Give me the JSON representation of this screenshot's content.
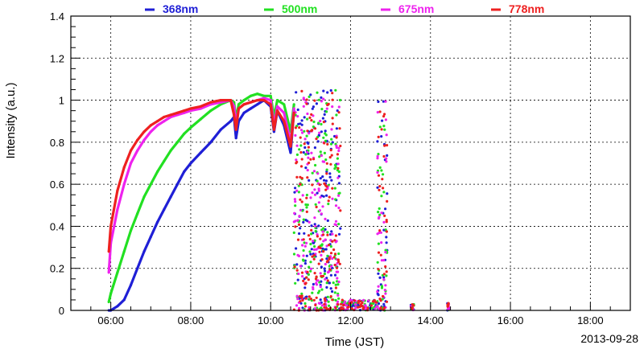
{
  "chart_data": {
    "type": "scatter",
    "title": "",
    "xlabel": "Time (JST)",
    "ylabel": "Intensity (a.u.)",
    "date_label": "2013-09-28",
    "xlim": [
      "05:00",
      "19:00"
    ],
    "ylim": [
      0,
      1.4
    ],
    "x_ticks": [
      "06:00",
      "08:00",
      "10:00",
      "12:00",
      "14:00",
      "16:00",
      "18:00"
    ],
    "y_ticks": [
      "0",
      "0.2",
      "0.4",
      "0.6",
      "0.8",
      "1",
      "1.2",
      "1.4"
    ],
    "grid": true,
    "legend_position": "top",
    "series": [
      {
        "name": "368nm",
        "color": "#1f1fd6",
        "points": [
          [
            "05:57",
            0.0
          ],
          [
            "06:00",
            0.0
          ],
          [
            "06:10",
            0.02
          ],
          [
            "06:20",
            0.05
          ],
          [
            "06:30",
            0.12
          ],
          [
            "06:40",
            0.2
          ],
          [
            "06:50",
            0.28
          ],
          [
            "07:00",
            0.35
          ],
          [
            "07:10",
            0.42
          ],
          [
            "07:20",
            0.48
          ],
          [
            "07:30",
            0.54
          ],
          [
            "07:40",
            0.6
          ],
          [
            "07:50",
            0.66
          ],
          [
            "08:00",
            0.7
          ],
          [
            "08:15",
            0.75
          ],
          [
            "08:30",
            0.8
          ],
          [
            "08:45",
            0.86
          ],
          [
            "09:00",
            0.9
          ],
          [
            "09:05",
            0.92
          ],
          [
            "09:08",
            0.82
          ],
          [
            "09:12",
            0.9
          ],
          [
            "09:20",
            0.94
          ],
          [
            "09:30",
            0.96
          ],
          [
            "09:40",
            0.98
          ],
          [
            "09:50",
            1.0
          ],
          [
            "10:00",
            0.97
          ],
          [
            "10:05",
            0.85
          ],
          [
            "10:10",
            0.95
          ],
          [
            "10:20",
            0.88
          ],
          [
            "10:30",
            0.75
          ],
          [
            "10:35",
            0.95
          ]
        ]
      },
      {
        "name": "500nm",
        "color": "#22e022",
        "points": [
          [
            "05:57",
            0.04
          ],
          [
            "06:00",
            0.08
          ],
          [
            "06:10",
            0.18
          ],
          [
            "06:20",
            0.28
          ],
          [
            "06:30",
            0.38
          ],
          [
            "06:40",
            0.46
          ],
          [
            "06:50",
            0.54
          ],
          [
            "07:00",
            0.6
          ],
          [
            "07:10",
            0.66
          ],
          [
            "07:20",
            0.71
          ],
          [
            "07:30",
            0.76
          ],
          [
            "07:40",
            0.8
          ],
          [
            "07:50",
            0.84
          ],
          [
            "08:00",
            0.87
          ],
          [
            "08:15",
            0.91
          ],
          [
            "08:30",
            0.95
          ],
          [
            "08:45",
            0.98
          ],
          [
            "09:00",
            1.0
          ],
          [
            "09:05",
            0.99
          ],
          [
            "09:08",
            0.91
          ],
          [
            "09:12",
            0.98
          ],
          [
            "09:20",
            1.0
          ],
          [
            "09:30",
            1.02
          ],
          [
            "09:40",
            1.03
          ],
          [
            "09:50",
            1.02
          ],
          [
            "10:00",
            1.02
          ],
          [
            "10:05",
            0.92
          ],
          [
            "10:10",
            1.0
          ],
          [
            "10:20",
            0.98
          ],
          [
            "10:30",
            0.85
          ],
          [
            "10:35",
            0.98
          ]
        ]
      },
      {
        "name": "675nm",
        "color": "#ee22ee",
        "points": [
          [
            "05:57",
            0.18
          ],
          [
            "06:00",
            0.32
          ],
          [
            "06:10",
            0.48
          ],
          [
            "06:20",
            0.6
          ],
          [
            "06:30",
            0.7
          ],
          [
            "06:40",
            0.76
          ],
          [
            "06:50",
            0.81
          ],
          [
            "07:00",
            0.85
          ],
          [
            "07:10",
            0.88
          ],
          [
            "07:20",
            0.9
          ],
          [
            "07:30",
            0.92
          ],
          [
            "07:40",
            0.93
          ],
          [
            "07:50",
            0.94
          ],
          [
            "08:00",
            0.95
          ],
          [
            "08:15",
            0.96
          ],
          [
            "08:30",
            0.98
          ],
          [
            "08:45",
            0.99
          ],
          [
            "09:00",
            1.0
          ],
          [
            "09:05",
            0.97
          ],
          [
            "09:08",
            0.89
          ],
          [
            "09:12",
            0.96
          ],
          [
            "09:20",
            0.98
          ],
          [
            "09:30",
            0.99
          ],
          [
            "09:40",
            1.0
          ],
          [
            "09:50",
            1.01
          ],
          [
            "10:00",
            1.0
          ],
          [
            "10:05",
            0.88
          ],
          [
            "10:10",
            0.97
          ],
          [
            "10:20",
            0.94
          ],
          [
            "10:30",
            0.8
          ],
          [
            "10:35",
            0.96
          ]
        ]
      },
      {
        "name": "778nm",
        "color": "#ee2020",
        "points": [
          [
            "05:57",
            0.28
          ],
          [
            "06:00",
            0.4
          ],
          [
            "06:10",
            0.57
          ],
          [
            "06:20",
            0.68
          ],
          [
            "06:30",
            0.76
          ],
          [
            "06:40",
            0.81
          ],
          [
            "06:50",
            0.85
          ],
          [
            "07:00",
            0.88
          ],
          [
            "07:10",
            0.9
          ],
          [
            "07:20",
            0.92
          ],
          [
            "07:30",
            0.93
          ],
          [
            "07:40",
            0.94
          ],
          [
            "07:50",
            0.95
          ],
          [
            "08:00",
            0.96
          ],
          [
            "08:15",
            0.97
          ],
          [
            "08:30",
            0.99
          ],
          [
            "08:45",
            1.0
          ],
          [
            "09:00",
            1.0
          ],
          [
            "09:05",
            0.93
          ],
          [
            "09:08",
            0.86
          ],
          [
            "09:12",
            0.96
          ],
          [
            "09:20",
            0.98
          ],
          [
            "09:30",
            0.99
          ],
          [
            "09:40",
            1.0
          ],
          [
            "09:50",
            1.0
          ],
          [
            "10:00",
            0.98
          ],
          [
            "10:05",
            0.86
          ],
          [
            "10:10",
            0.95
          ],
          [
            "10:20",
            0.9
          ],
          [
            "10:30",
            0.78
          ],
          [
            "10:35",
            0.94
          ]
        ]
      }
    ],
    "scatter_region": {
      "description_free": true,
      "clusters": [
        {
          "start": "10:35",
          "end": "11:45",
          "ymin": 0.0,
          "ymax": 1.05
        },
        {
          "start": "12:40",
          "end": "12:55",
          "ymin": 0.0,
          "ymax": 1.02
        },
        {
          "start": "11:45",
          "end": "12:40",
          "ymin": 0.0,
          "ymax": 0.05
        },
        {
          "start": "13:30",
          "end": "13:35",
          "ymin": 0.0,
          "ymax": 0.03
        },
        {
          "start": "14:25",
          "end": "14:28",
          "ymin": 0.0,
          "ymax": 0.04
        }
      ]
    }
  }
}
